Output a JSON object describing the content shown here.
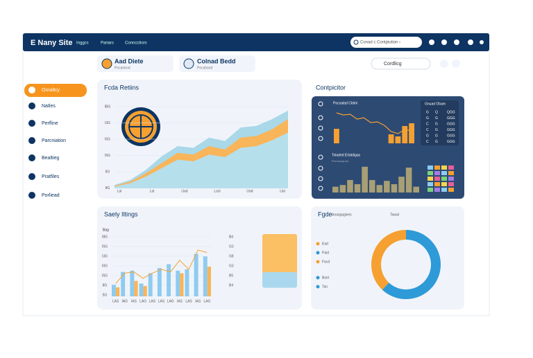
{
  "header": {
    "brand": "E Nany Site",
    "nav": [
      "Inggcs",
      "Pariars",
      "Conncctiors"
    ],
    "search": "Conad c Contpiution ›"
  },
  "cards": [
    {
      "title": "Aad Diete",
      "sub": "Pocanbod"
    },
    {
      "title": "Colnad Bedd",
      "sub": "Pocsbood"
    }
  ],
  "filter": "Cordlicg",
  "sidebar": [
    "Ooraltcy",
    "Natles",
    "Perfline",
    "Parcniation",
    "Bealtieg",
    "Pratfiles",
    "Porliead"
  ],
  "returns": {
    "title": "Fcda Retiins",
    "ylabels": [
      "IBG",
      "I3G",
      "I5G",
      "I5G",
      "IIG",
      "8G"
    ],
    "xlabels": [
      "Lal",
      "Lal",
      "Uad",
      "Lasl",
      "Uad",
      "Ual"
    ],
    "ylim": [
      0,
      100
    ],
    "series": [
      {
        "color": "#a9d8e8",
        "values": [
          4,
          10,
          22,
          38,
          50,
          48,
          60,
          56,
          72,
          74,
          82,
          92
        ]
      },
      {
        "color": "#f8b55a",
        "values": [
          3,
          8,
          18,
          30,
          42,
          40,
          50,
          46,
          60,
          62,
          70,
          82
        ]
      },
      {
        "color": "#b6dfec",
        "values": [
          2,
          6,
          14,
          24,
          34,
          32,
          40,
          37,
          48,
          50,
          57,
          66
        ]
      }
    ]
  },
  "competitor": {
    "title": "Contpicitor",
    "chart_title": "Pocsatad Cldmi",
    "table_title": "Gnuad Obam",
    "table": [
      [
        "G",
        "Q",
        "QGG"
      ],
      [
        "G",
        "G",
        "GGG"
      ],
      [
        "C",
        "G",
        "GGG"
      ],
      [
        "C",
        "G",
        "GGG"
      ],
      [
        "G",
        "G",
        "GGG"
      ],
      [
        "C",
        "G",
        "GGG"
      ]
    ],
    "bottom_title": "Toladed Erlatdigas",
    "bottom_sub": "Poroeaoqued",
    "line": [
      88,
      82,
      84,
      70,
      74,
      60,
      62,
      52,
      34,
      28,
      40,
      36
    ],
    "bars": [
      42,
      0,
      0,
      0,
      0,
      0,
      0,
      0,
      26,
      20,
      50,
      58
    ],
    "ylim": [
      0,
      100
    ],
    "bottom_bars": [
      14,
      18,
      30,
      20,
      62,
      30,
      18,
      28,
      20,
      38,
      60,
      14
    ],
    "bottom_ylim": [
      0,
      70
    ]
  },
  "sales": {
    "title": "Saely Iltings",
    "ylabel": "Bag",
    "ylabels": [
      "I8G",
      "I5G",
      "I3G",
      "I0G",
      "I5G",
      "8G",
      "5G"
    ],
    "xlabels": [
      "LAS",
      "IAG",
      "IAS",
      "LAG",
      "LAS",
      "LAS",
      "LAG",
      "IAS",
      "LAS",
      "IAS",
      "LAG"
    ],
    "ylim": [
      0,
      100
    ],
    "blue": [
      18,
      38,
      40,
      20,
      36,
      44,
      50,
      40,
      42,
      66,
      62
    ],
    "orange": [
      14,
      0,
      24,
      16,
      0,
      0,
      0,
      36,
      0,
      0,
      46
    ],
    "line": [
      20,
      36,
      38,
      28,
      36,
      42,
      38,
      56,
      42,
      72,
      68
    ],
    "side_labels": [
      "Bd",
      "G3",
      "G8",
      "G3",
      "B5",
      "B4"
    ],
    "side_values": [
      62,
      22
    ],
    "side_ylim": [
      0,
      70
    ]
  },
  "pie": {
    "title": "Fgde",
    "legend_title": "Aoasgagives",
    "legend_sub": "Tawat",
    "legend": [
      "Ead",
      "Paid",
      "Facd",
      "Boel",
      "Tan"
    ],
    "values": [
      62,
      38
    ],
    "colors": [
      "#2e9ad8",
      "#f5a031"
    ]
  }
}
